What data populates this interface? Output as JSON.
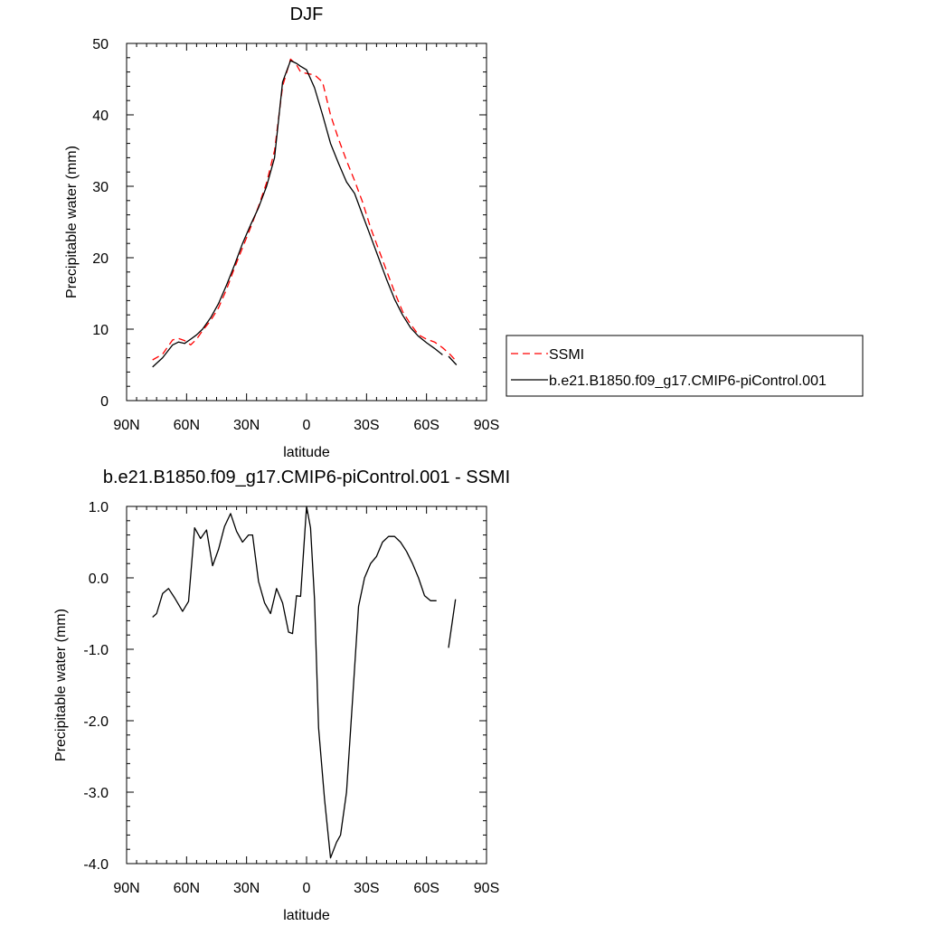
{
  "chart_data": [
    {
      "type": "line",
      "title": "DJF",
      "xlabel": "latitude",
      "ylabel": "Precipitable water (mm)",
      "x_axis": {
        "ticks": [
          -90,
          -60,
          -30,
          0,
          30,
          60,
          90
        ],
        "tick_labels": [
          "90N",
          "60N",
          "30N",
          "0",
          "30S",
          "60S",
          "90S"
        ],
        "range": [
          -90,
          90
        ]
      },
      "y_axis": {
        "ticks": [
          0,
          10,
          20,
          30,
          40,
          50
        ],
        "tick_labels": [
          "0",
          "10",
          "20",
          "30",
          "40",
          "50"
        ],
        "range": [
          0,
          50
        ]
      },
      "grid": false,
      "legend": {
        "placement": "right",
        "entries": [
          "SSMI",
          "b.e21.B1850.f09_g17.CMIP6-piControl.001"
        ]
      },
      "series": [
        {
          "name": "SSMI",
          "color": "#ff0000",
          "dash": "dashed",
          "x": [
            -77,
            -72,
            -67,
            -64,
            -61,
            -58,
            -55,
            -52,
            -48,
            -44,
            -40,
            -36,
            -32,
            -28,
            -24,
            -20,
            -16,
            -12,
            -8,
            -5,
            -3,
            0,
            4,
            8,
            12,
            16,
            20,
            24,
            28,
            32,
            36,
            40,
            44,
            48,
            52,
            56,
            60,
            64,
            68,
            72,
            75
          ],
          "values": [
            5.7,
            6.5,
            8.5,
            8.7,
            8.4,
            7.8,
            8.6,
            9.8,
            11.2,
            13.0,
            15.6,
            18.6,
            21.4,
            24.2,
            27.2,
            30.5,
            35.0,
            44.0,
            47.8,
            47.0,
            46.0,
            45.8,
            45.6,
            44.6,
            40.0,
            36.6,
            33.6,
            30.8,
            27.8,
            24.2,
            21.2,
            18.2,
            15.2,
            12.5,
            10.7,
            9.2,
            8.6,
            8.2,
            7.4,
            6.4,
            5.5
          ]
        },
        {
          "name": "b.e21.B1850.f09_g17.CMIP6-piControl.001",
          "color": "#000000",
          "dash": "solid",
          "x": [
            -77,
            -72,
            -67,
            -64,
            -61,
            -58,
            -55,
            -52,
            -48,
            -44,
            -40,
            -36,
            -32,
            -28,
            -24,
            -20,
            -16,
            -12,
            -8,
            -5,
            -3,
            0,
            4,
            8,
            12,
            16,
            20,
            24,
            28,
            32,
            36,
            40,
            44,
            48,
            52,
            56,
            60,
            64,
            68
          ],
          "values": [
            4.7,
            6.0,
            7.8,
            8.2,
            8.0,
            8.6,
            9.2,
            10.0,
            11.6,
            13.6,
            16.2,
            19.0,
            22.0,
            24.6,
            27.0,
            30.0,
            34.0,
            44.6,
            47.6,
            47.2,
            46.8,
            46.3,
            43.8,
            40.0,
            36.0,
            33.2,
            30.6,
            29.0,
            26.0,
            23.0,
            20.0,
            17.0,
            14.2,
            12.0,
            10.2,
            9.0,
            8.1,
            7.3,
            6.4
          ]
        },
        {
          "name": "",
          "color": "#000000",
          "dash": "solid",
          "x": [
            71,
            75
          ],
          "values": [
            6.2,
            5.0
          ]
        }
      ]
    },
    {
      "type": "line",
      "title": "b.e21.B1850.f09_g17.CMIP6-piControl.001 - SSMI",
      "xlabel": "latitude",
      "ylabel": "Precipitable water (mm)",
      "x_axis": {
        "ticks": [
          -90,
          -60,
          -30,
          0,
          30,
          60,
          90
        ],
        "tick_labels": [
          "90N",
          "60N",
          "30N",
          "0",
          "30S",
          "60S",
          "90S"
        ],
        "range": [
          -90,
          90
        ]
      },
      "y_axis": {
        "ticks": [
          1,
          0,
          -1,
          -2,
          -3,
          -4
        ],
        "tick_labels": [
          "1.0",
          "0.0",
          "-1.0",
          "-2.0",
          "-3.0",
          "-4.0"
        ],
        "range": [
          -4,
          1
        ]
      },
      "grid": false,
      "series": [
        {
          "name": "",
          "color": "#000000",
          "dash": "solid",
          "x": [
            -77,
            -75,
            -72,
            -69,
            -66,
            -62,
            -59,
            -56,
            -53,
            -50,
            -47,
            -44,
            -41,
            -38,
            -35,
            -32,
            -29,
            -27,
            -24,
            -21,
            -18,
            -15,
            -12,
            -9,
            -7,
            -5,
            -3,
            0,
            2,
            4,
            6,
            9,
            12,
            15,
            17,
            20,
            23,
            26,
            29,
            32,
            35,
            38,
            41,
            44,
            47,
            50,
            53,
            56,
            59,
            62,
            65
          ],
          "values": [
            -0.55,
            -0.5,
            -0.22,
            -0.15,
            -0.28,
            -0.47,
            -0.33,
            0.7,
            0.55,
            0.67,
            0.17,
            0.4,
            0.72,
            0.9,
            0.65,
            0.5,
            0.6,
            0.6,
            -0.05,
            -0.35,
            -0.5,
            -0.15,
            -0.35,
            -0.76,
            -0.78,
            -0.25,
            -0.26,
            1.0,
            0.7,
            -0.3,
            -2.1,
            -3.1,
            -3.92,
            -3.7,
            -3.6,
            -3.0,
            -1.7,
            -0.4,
            0.0,
            0.2,
            0.3,
            0.5,
            0.58,
            0.58,
            0.5,
            0.37,
            0.2,
            0.0,
            -0.25,
            -0.32,
            -0.32
          ]
        },
        {
          "name": "",
          "color": "#000000",
          "dash": "solid",
          "x": [
            71,
            74.5
          ],
          "values": [
            -0.98,
            -0.3
          ]
        }
      ]
    }
  ]
}
